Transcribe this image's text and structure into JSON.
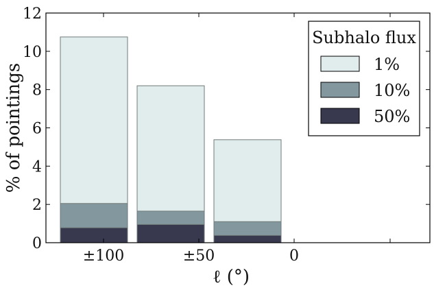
{
  "chart_data": {
    "type": "bar",
    "stacked_overlay": true,
    "categories": [
      "±100",
      "±50",
      "0"
    ],
    "series": [
      {
        "name": "1%",
        "color": "#e0edec",
        "values": [
          10.75,
          8.2,
          5.38
        ]
      },
      {
        "name": "10%",
        "color": "#83979f",
        "values": [
          2.05,
          1.65,
          1.1
        ]
      },
      {
        "name": "50%",
        "color": "#38384f",
        "values": [
          0.78,
          0.95,
          0.38
        ]
      }
    ],
    "x_ticks": [
      "±100",
      "±50",
      "0"
    ],
    "y_ticks": [
      "0",
      "2",
      "4",
      "6",
      "8",
      "10",
      "12"
    ],
    "ylim": [
      0,
      12
    ],
    "xlabel": "ℓ (°)",
    "ylabel": "% of pointings",
    "legend": {
      "title": "Subhalo flux",
      "placement": "top-right"
    },
    "grid": false
  }
}
